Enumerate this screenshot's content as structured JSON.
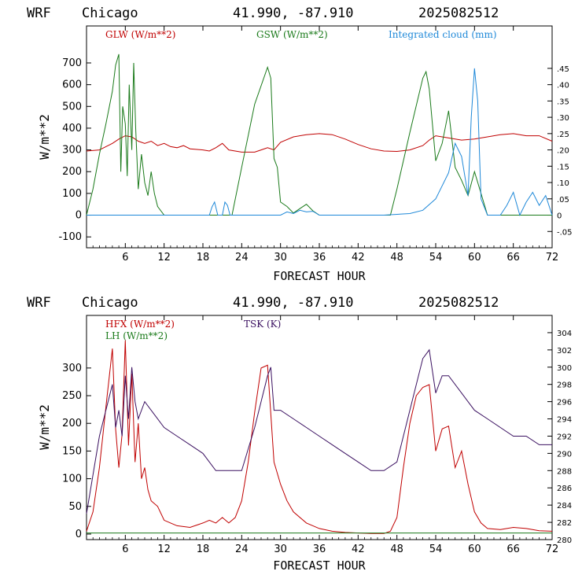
{
  "panels": [
    {
      "header": {
        "model": "WRF",
        "location": "Chicago",
        "coords": "41.990, -87.910",
        "run": "2025082512"
      },
      "xlabel": "FORECAST HOUR",
      "ylabel": "W/m**2",
      "legend": [
        {
          "label": "GLW (W/m**2)",
          "color": "#c00000"
        },
        {
          "label": "GSW (W/m**2)",
          "color": "#1a7a1a"
        },
        {
          "label": "Integrated cloud (mm)",
          "color": "#1e88d8"
        }
      ],
      "x_ticks": [
        "6",
        "12",
        "18",
        "24",
        "30",
        "36",
        "42",
        "48",
        "54",
        "60",
        "66",
        "72"
      ],
      "y_left_ticks": [
        "-100",
        "0",
        "100",
        "200",
        "300",
        "400",
        "500",
        "600",
        "700"
      ],
      "y_right_ticks": [
        "-.05",
        "0",
        ".05",
        ".10",
        ".15",
        ".20",
        ".25",
        ".30",
        ".35",
        ".40",
        ".45"
      ]
    },
    {
      "header": {
        "model": "WRF",
        "location": "Chicago",
        "coords": "41.990, -87.910",
        "run": "2025082512"
      },
      "xlabel": "FORECAST HOUR",
      "ylabel": "W/m**2",
      "legend": [
        {
          "label": "HFX (W/m**2)",
          "color": "#c00000"
        },
        {
          "label": "LH  (W/m**2)",
          "color": "#1a7a1a"
        },
        {
          "label": "TSK (K)",
          "color": "#3a1060"
        }
      ],
      "x_ticks": [
        "6",
        "12",
        "18",
        "24",
        "30",
        "36",
        "42",
        "48",
        "54",
        "60",
        "66",
        "72"
      ],
      "y_left_ticks": [
        "0",
        "50",
        "100",
        "150",
        "200",
        "250",
        "300"
      ],
      "y_right_ticks": [
        "280",
        "282",
        "284",
        "286",
        "288",
        "290",
        "292",
        "294",
        "296",
        "298",
        "300",
        "302",
        "304"
      ]
    }
  ],
  "chart_data": [
    {
      "type": "line",
      "xlim": [
        0,
        72
      ],
      "ylim_left": [
        -150,
        870
      ],
      "ylim_right": [
        -0.1,
        0.58
      ],
      "grid": false,
      "legend_position": "top",
      "series": [
        {
          "name": "GLW (W/m**2)",
          "axis": "left",
          "color": "#c00000",
          "x": [
            0,
            2,
            3,
            4,
            5,
            6,
            7,
            8,
            9,
            10,
            11,
            12,
            13,
            14,
            15,
            16,
            18,
            19,
            20,
            21,
            22,
            24,
            26,
            27,
            28,
            29,
            30,
            32,
            34,
            36,
            38,
            40,
            42,
            44,
            46,
            48,
            50,
            52,
            53,
            54,
            56,
            58,
            60,
            62,
            64,
            66,
            68,
            70,
            72
          ],
          "y": [
            295,
            300,
            315,
            330,
            350,
            365,
            360,
            340,
            330,
            340,
            320,
            330,
            315,
            310,
            320,
            305,
            300,
            295,
            310,
            330,
            300,
            290,
            290,
            300,
            310,
            300,
            335,
            360,
            370,
            375,
            370,
            350,
            325,
            305,
            295,
            293,
            300,
            320,
            345,
            365,
            355,
            345,
            350,
            360,
            370,
            375,
            365,
            365,
            340
          ]
        },
        {
          "name": "GSW (W/m**2)",
          "axis": "left",
          "color": "#1a7a1a",
          "x": [
            0,
            1,
            2,
            3,
            4,
            4.5,
            5,
            5.3,
            5.6,
            6,
            6.3,
            6.6,
            7,
            7.3,
            7.6,
            8,
            8.5,
            9,
            9.5,
            10,
            10.5,
            11,
            12,
            12.5,
            22.5,
            24,
            26,
            28,
            28.5,
            29,
            29.5,
            30,
            31,
            32,
            33,
            34,
            35,
            36,
            47,
            48,
            50,
            52,
            52.5,
            53,
            54,
            55,
            56,
            57,
            58,
            59,
            60,
            61,
            62,
            72
          ],
          "x_note": "",
          "y": [
            0,
            120,
            280,
            420,
            570,
            690,
            740,
            200,
            500,
            420,
            180,
            600,
            300,
            700,
            400,
            120,
            280,
            150,
            90,
            200,
            100,
            40,
            0,
            0,
            0,
            220,
            510,
            680,
            630,
            260,
            220,
            60,
            40,
            10,
            30,
            50,
            20,
            0,
            0,
            120,
            380,
            630,
            660,
            580,
            250,
            330,
            480,
            220,
            160,
            90,
            200,
            100,
            0,
            0
          ]
        },
        {
          "name": "Integrated cloud (mm)",
          "axis": "right",
          "color": "#1e88d8",
          "x": [
            0,
            19,
            19.4,
            19.8,
            20.3,
            21,
            21.4,
            21.8,
            22.2,
            30,
            31,
            32,
            33,
            34,
            35,
            36,
            46,
            50,
            52,
            54,
            56,
            57,
            58,
            59,
            59.5,
            60,
            60.5,
            61,
            62,
            64,
            65,
            66,
            67,
            68,
            69,
            70,
            71,
            72
          ],
          "y": [
            0,
            0,
            0.025,
            0.04,
            0,
            0,
            0.04,
            0.03,
            0,
            0,
            0.01,
            0.005,
            0.015,
            0.01,
            0.012,
            0,
            0,
            0.005,
            0.015,
            0.05,
            0.13,
            0.22,
            0.18,
            0.06,
            0.3,
            0.45,
            0.35,
            0.05,
            0,
            0,
            0.03,
            0.07,
            0,
            0.04,
            0.07,
            0.03,
            0.06,
            0
          ]
        }
      ]
    },
    {
      "type": "line",
      "xlim": [
        0,
        72
      ],
      "ylim_left": [
        -10,
        395
      ],
      "ylim_right": [
        280,
        306
      ],
      "grid": false,
      "legend_position": "top-left",
      "series": [
        {
          "name": "HFX (W/m**2)",
          "axis": "left",
          "color": "#c00000",
          "x": [
            0,
            1,
            2,
            3,
            4,
            4.5,
            5,
            5.5,
            6,
            6.5,
            7,
            7.5,
            8,
            8.5,
            9,
            9.5,
            10,
            11,
            12,
            13,
            14,
            16,
            18,
            19,
            20,
            21,
            22,
            23,
            24,
            25,
            26,
            27,
            28,
            29,
            30,
            31,
            32,
            34,
            36,
            38,
            40,
            42,
            44,
            46,
            47,
            48,
            49,
            50,
            51,
            52,
            53,
            54,
            55,
            56,
            57,
            58,
            59,
            60,
            61,
            62,
            64,
            66,
            68,
            70,
            72
          ],
          "y": [
            5,
            40,
            120,
            230,
            335,
            190,
            120,
            180,
            350,
            160,
            290,
            130,
            200,
            100,
            120,
            80,
            60,
            50,
            25,
            20,
            15,
            12,
            20,
            25,
            20,
            30,
            20,
            30,
            60,
            130,
            220,
            300,
            305,
            130,
            90,
            60,
            40,
            20,
            10,
            5,
            3,
            2,
            1,
            1,
            5,
            30,
            120,
            200,
            250,
            265,
            270,
            150,
            190,
            195,
            120,
            150,
            90,
            40,
            20,
            10,
            8,
            12,
            10,
            6,
            5
          ]
        },
        {
          "name": "LH  (W/m**2)",
          "axis": "left",
          "color": "#1a7a1a",
          "x": [
            0,
            72
          ],
          "y": [
            2,
            2
          ]
        },
        {
          "name": "TSK (K)",
          "axis": "right",
          "color": "#3a1060",
          "x": [
            0,
            2,
            4,
            4.5,
            5,
            5.5,
            6,
            6.5,
            7,
            7.5,
            8,
            9,
            10,
            12,
            14,
            16,
            18,
            20,
            22,
            24,
            26,
            28,
            28.5,
            29,
            30,
            32,
            34,
            36,
            38,
            40,
            42,
            44,
            46,
            48,
            50,
            52,
            53,
            54,
            55,
            56,
            58,
            60,
            62,
            64,
            66,
            68,
            70,
            72
          ],
          "y": [
            283,
            292,
            298,
            293,
            295,
            292,
            299,
            294,
            300,
            296,
            294,
            296,
            295,
            293,
            292,
            291,
            290,
            288,
            288,
            288,
            293,
            299,
            300,
            295,
            295,
            294,
            293,
            292,
            291,
            290,
            289,
            288,
            288,
            289,
            295,
            301,
            302,
            297,
            299,
            299,
            297,
            295,
            294,
            293,
            292,
            292,
            291,
            291
          ]
        }
      ]
    }
  ]
}
